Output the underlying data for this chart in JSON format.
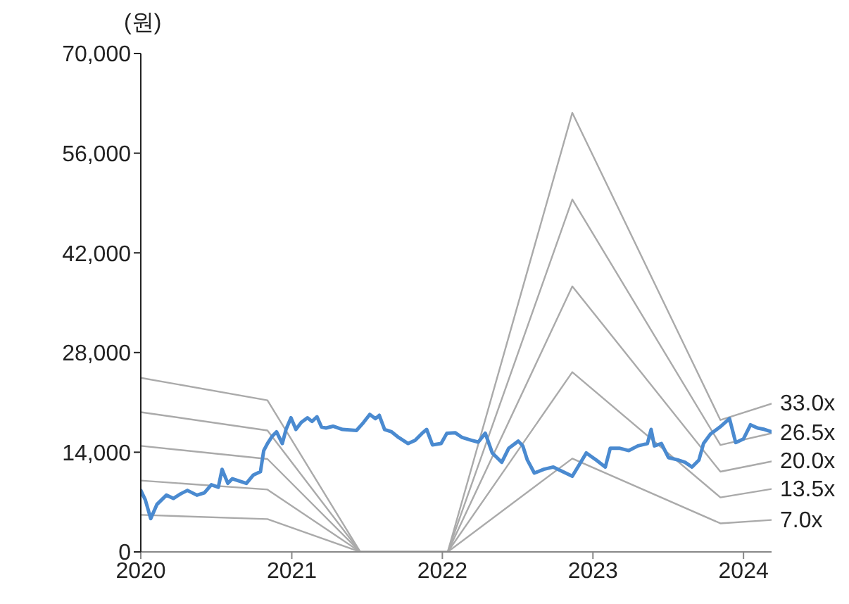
{
  "chart_data": {
    "type": "line",
    "ylabel": "(원)",
    "xlim": [
      "2020-01-01",
      "2024-03-09"
    ],
    "xticks": [
      "2020",
      "2021",
      "2022",
      "2023",
      "2024"
    ],
    "ylim": [
      0,
      70000
    ],
    "yticks": [
      {
        "value": 0,
        "label": "0"
      },
      {
        "value": 14000,
        "label": "14,000"
      },
      {
        "value": 28000,
        "label": "28,000"
      },
      {
        "value": 42000,
        "label": "42,000"
      },
      {
        "value": 56000,
        "label": "56,000"
      },
      {
        "value": 70000,
        "label": "70,000"
      }
    ],
    "grid": false,
    "legend": false,
    "marker": "none",
    "line_style": "solid",
    "series": [
      {
        "name": "33.0x",
        "color": "#aaaaaa",
        "x": [
          "2020-01-01",
          "2020-11-03",
          "2021-06-16",
          "2022-01-14",
          "2022-11-12",
          "2023-11-06",
          "2024-03-09"
        ],
        "values": [
          24450,
          21290,
          0,
          0,
          61680,
          18520,
          20820
        ]
      },
      {
        "name": "26.5x",
        "color": "#aaaaaa",
        "x": [
          "2020-01-01",
          "2020-11-03",
          "2021-06-16",
          "2022-01-14",
          "2022-11-12",
          "2023-11-06",
          "2024-03-09"
        ],
        "values": [
          19630,
          17060,
          0,
          0,
          49490,
          15020,
          16670
        ]
      },
      {
        "name": "20.0x",
        "color": "#aaaaaa",
        "x": [
          "2020-01-01",
          "2020-11-03",
          "2021-06-16",
          "2022-01-14",
          "2022-11-12",
          "2023-11-06",
          "2024-03-09"
        ],
        "values": [
          14890,
          13050,
          0,
          0,
          37300,
          11270,
          12710
        ]
      },
      {
        "name": "13.5x",
        "color": "#aaaaaa",
        "x": [
          "2020-01-01",
          "2020-11-03",
          "2021-06-16",
          "2022-01-14",
          "2022-11-12",
          "2023-11-06",
          "2024-03-09"
        ],
        "values": [
          10020,
          8760,
          0,
          0,
          25250,
          7650,
          8840
        ]
      },
      {
        "name": "7.0x",
        "color": "#aaaaaa",
        "x": [
          "2020-01-01",
          "2020-11-03",
          "2021-06-16",
          "2022-01-14",
          "2022-11-12",
          "2023-11-06",
          "2024-03-09"
        ],
        "values": [
          5200,
          4610,
          0,
          0,
          13110,
          4010,
          4490
        ]
      },
      {
        "color": "#4a8ad0",
        "x": [
          "2020-01-01",
          "2020-01-12",
          "2020-01-25",
          "2020-02-09",
          "2020-03-03",
          "2020-03-20",
          "2020-04-07",
          "2020-04-23",
          "2020-05-16",
          "2020-06-03",
          "2020-06-20",
          "2020-07-07",
          "2020-07-16",
          "2020-07-30",
          "2020-08-10",
          "2020-08-27",
          "2020-09-13",
          "2020-09-30",
          "2020-10-17",
          "2020-10-25",
          "2020-11-03",
          "2020-11-14",
          "2020-11-25",
          "2020-12-09",
          "2020-12-18",
          "2020-12-30",
          "2021-01-11",
          "2021-01-24",
          "2021-02-08",
          "2021-02-19",
          "2021-03-03",
          "2021-03-14",
          "2021-03-25",
          "2021-04-11",
          "2021-05-04",
          "2021-06-07",
          "2021-06-24",
          "2021-07-09",
          "2021-07-23",
          "2021-08-01",
          "2021-08-14",
          "2021-08-31",
          "2021-09-17",
          "2021-10-10",
          "2021-10-27",
          "2021-11-13",
          "2021-11-24",
          "2021-12-08",
          "2021-12-29",
          "2022-01-12",
          "2022-02-01",
          "2022-02-18",
          "2022-03-12",
          "2022-03-29",
          "2022-04-15",
          "2022-05-02",
          "2022-05-25",
          "2022-06-11",
          "2022-07-04",
          "2022-07-15",
          "2022-07-26",
          "2022-08-12",
          "2022-09-04",
          "2022-09-27",
          "2022-10-20",
          "2022-11-12",
          "2022-11-29",
          "2022-12-16",
          "2023-01-09",
          "2023-01-31",
          "2023-02-12",
          "2023-03-06",
          "2023-03-29",
          "2023-04-20",
          "2023-05-13",
          "2023-05-22",
          "2023-05-30",
          "2023-06-16",
          "2023-07-03",
          "2023-07-26",
          "2023-08-12",
          "2023-08-29",
          "2023-09-15",
          "2023-09-26",
          "2023-10-13",
          "2023-11-05",
          "2023-11-28",
          "2023-12-13",
          "2024-01-01",
          "2024-01-18",
          "2024-02-04",
          "2024-02-21",
          "2024-03-09"
        ],
        "values": [
          8640,
          7310,
          4680,
          6660,
          7970,
          7510,
          8170,
          8640,
          7970,
          8300,
          9430,
          9090,
          11600,
          9630,
          10280,
          9940,
          9630,
          10810,
          11270,
          14230,
          15220,
          16210,
          16860,
          15220,
          17200,
          18840,
          17200,
          18190,
          18840,
          18330,
          18980,
          17540,
          17400,
          17650,
          17200,
          17060,
          18190,
          19310,
          18720,
          19180,
          17200,
          16860,
          16070,
          15220,
          15680,
          16670,
          17200,
          15030,
          15220,
          16670,
          16740,
          16070,
          15680,
          15420,
          16670,
          13900,
          12590,
          14570,
          15560,
          14890,
          12910,
          11070,
          11600,
          11920,
          11270,
          10620,
          12260,
          13900,
          12910,
          11920,
          14570,
          14570,
          14230,
          14890,
          15220,
          17200,
          14890,
          15220,
          13250,
          12910,
          12590,
          11920,
          12910,
          15220,
          16550,
          17540,
          18720,
          15360,
          15880,
          17850,
          17400,
          17200,
          16860
        ]
      }
    ]
  }
}
